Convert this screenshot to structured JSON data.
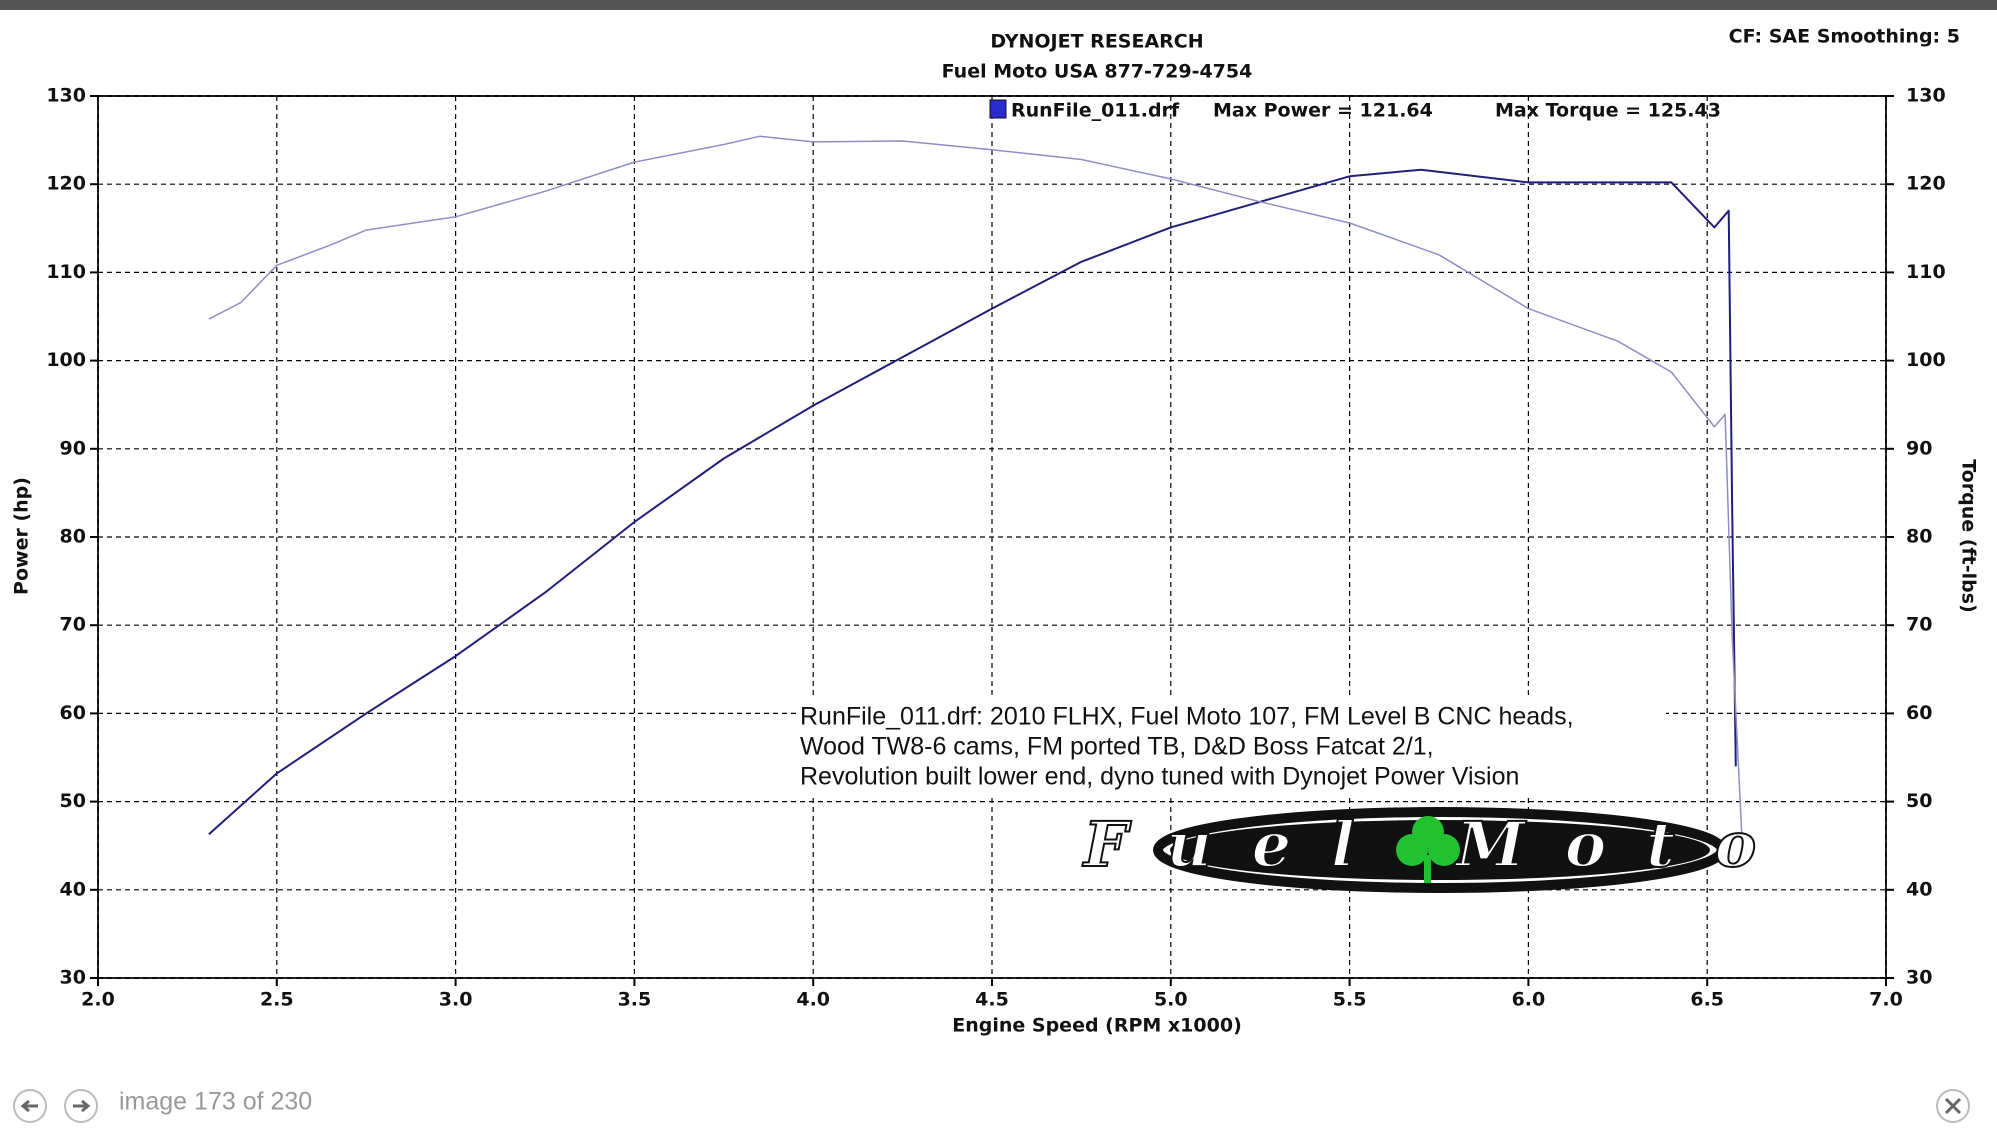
{
  "chart_data": {
    "type": "line",
    "title": "DYNOJET RESEARCH",
    "subtitle": "Fuel Moto USA 877-729-4754",
    "settings_label": "CF: SAE  Smoothing: 5",
    "x_label": "Engine Speed (RPM x1000)",
    "y_label": "Power (hp)",
    "y2_label": "Torque (ft-lbs)",
    "legend": {
      "run": "RunFile_011.drf",
      "max_power": "Max Power = 121.64",
      "max_torque": "Max Torque = 125.43"
    },
    "annotation": [
      "RunFile_011.drf: 2010 FLHX, Fuel Moto 107, FM Level B CNC heads,",
      "Wood TW8-6 cams, FM ported TB, D&D Boss Fatcat 2/1,",
      "Revolution built lower end, dyno tuned with Dynojet Power Vision"
    ],
    "logo": "Fuel Moto",
    "xlim": [
      2,
      7
    ],
    "xticks": [
      {
        "value": 2,
        "label": "2.0"
      },
      2.5,
      {
        "value": 3,
        "label": "3.0"
      },
      3.5,
      {
        "value": 4,
        "label": "4.0"
      },
      4.5,
      {
        "value": 5,
        "label": "5.0"
      },
      5.5,
      {
        "value": 6,
        "label": "6.0"
      },
      6.5,
      {
        "value": 7,
        "label": "7.0"
      }
    ],
    "ylim": [
      30,
      130
    ],
    "yticks": [
      30,
      40,
      50,
      60,
      70,
      80,
      90,
      100,
      110,
      120,
      130
    ],
    "y2lim": [
      30,
      130
    ],
    "y2ticks": [
      30,
      40,
      50,
      60,
      70,
      80,
      90,
      100,
      110,
      120,
      130
    ],
    "grid": true,
    "series": [
      {
        "color": "#1f1f7a",
        "width": 2,
        "x": [
          2.31,
          2.5,
          2.75,
          3.0,
          3.25,
          3.5,
          3.75,
          4.0,
          4.25,
          4.5,
          4.75,
          5.0,
          5.25,
          5.5,
          5.7,
          6.0,
          6.25,
          6.4,
          6.52,
          6.56,
          6.57,
          6.58
        ],
        "values": [
          46.3,
          53.2,
          60.0,
          66.5,
          73.7,
          81.7,
          88.9,
          94.9,
          100.4,
          105.9,
          111.2,
          115.1,
          118.0,
          120.9,
          121.64,
          120.2,
          120.2,
          120.2,
          115.1,
          117.0,
          83.0,
          54.0
        ]
      },
      {
        "color": "#8d8fc4",
        "width": 1.5,
        "axis": "y2",
        "x": [
          2.31,
          2.4,
          2.5,
          2.65,
          2.75,
          3.0,
          3.25,
          3.5,
          3.75,
          3.85,
          4.0,
          4.25,
          4.5,
          4.75,
          5.0,
          5.25,
          5.5,
          5.75,
          6.0,
          6.25,
          6.4,
          6.52,
          6.55,
          6.57,
          6.6
        ],
        "values": [
          104.7,
          106.6,
          110.8,
          113.1,
          114.8,
          116.3,
          119.2,
          122.5,
          124.5,
          125.43,
          124.8,
          124.9,
          123.9,
          122.8,
          120.6,
          118.0,
          115.6,
          112.0,
          105.9,
          102.2,
          98.7,
          92.5,
          93.9,
          68.7,
          43.4
        ]
      }
    ]
  },
  "footer": {
    "counter": "image 173 of 230"
  }
}
